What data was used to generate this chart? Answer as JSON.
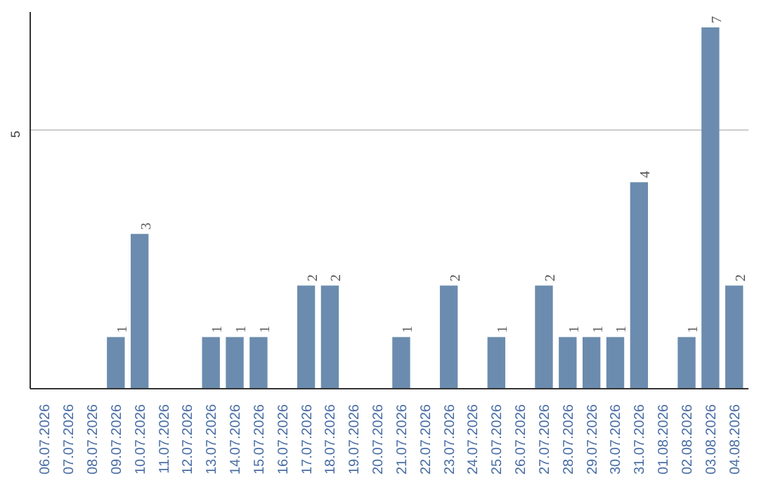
{
  "chart_data": {
    "type": "bar",
    "categories": [
      "06.07.2026",
      "07.07.2026",
      "08.07.2026",
      "09.07.2026",
      "10.07.2026",
      "11.07.2026",
      "12.07.2026",
      "13.07.2026",
      "14.07.2026",
      "15.07.2026",
      "16.07.2026",
      "17.07.2026",
      "18.07.2026",
      "19.07.2026",
      "20.07.2026",
      "21.07.2026",
      "22.07.2026",
      "23.07.2026",
      "24.07.2026",
      "25.07.2026",
      "26.07.2026",
      "27.07.2026",
      "28.07.2026",
      "29.07.2026",
      "30.07.2026",
      "31.07.2026",
      "01.08.2026",
      "02.08.2026",
      "03.08.2026",
      "04.08.2026"
    ],
    "values": [
      0,
      0,
      0,
      1,
      3,
      0,
      0,
      1,
      1,
      1,
      0,
      2,
      2,
      0,
      0,
      1,
      0,
      2,
      0,
      1,
      0,
      2,
      1,
      1,
      1,
      4,
      0,
      1,
      7,
      2
    ],
    "value_labels": [
      null,
      null,
      null,
      "1",
      "3",
      null,
      null,
      "1",
      "1",
      "1",
      null,
      "2",
      "2",
      null,
      null,
      "1",
      null,
      "2",
      null,
      "1",
      null,
      "2",
      "1",
      "1",
      "1",
      "4",
      null,
      "1",
      "7",
      "2"
    ],
    "color": "#6b8cae",
    "ylim": [
      0,
      7.3
    ],
    "yticks": [
      5
    ],
    "grid": "y"
  }
}
